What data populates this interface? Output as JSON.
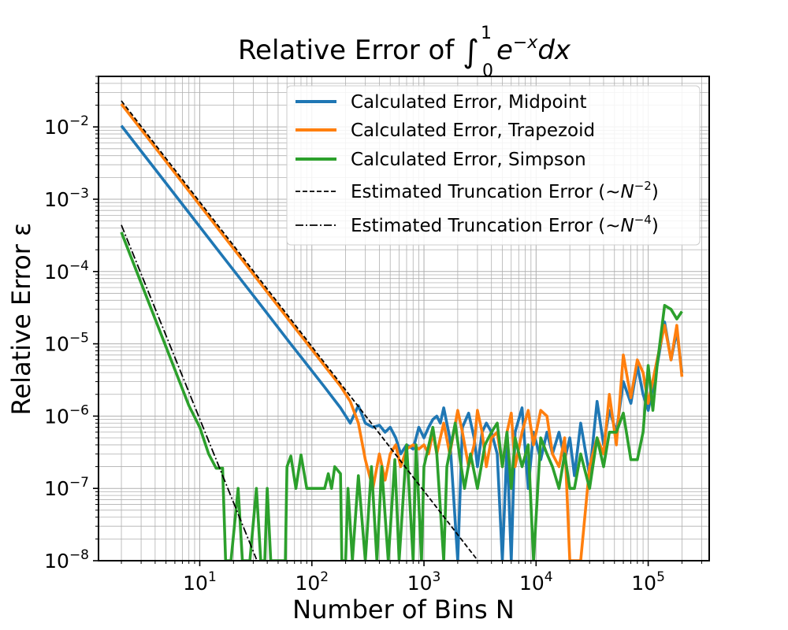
{
  "chart_data": {
    "type": "line",
    "title": "Relative Error of ∫₀¹ e⁻ˣdx",
    "title_parts": {
      "prefix": "Relative Error of ",
      "integral": "∫",
      "upper": "1",
      "lower": "0",
      "integrand": "e",
      "exponent": "−x",
      "suffix": "dx"
    },
    "xlabel": "Number of Bins N",
    "ylabel": "Relative Error ε",
    "xscale": "log",
    "yscale": "log",
    "xlim": [
      1.25,
      350000
    ],
    "ylim": [
      1e-08,
      0.05
    ],
    "xticks": [
      {
        "value": 10,
        "base": "10",
        "exp": "1"
      },
      {
        "value": 100,
        "base": "10",
        "exp": "2"
      },
      {
        "value": 1000,
        "base": "10",
        "exp": "3"
      },
      {
        "value": 10000,
        "base": "10",
        "exp": "4"
      },
      {
        "value": 100000,
        "base": "10",
        "exp": "5"
      }
    ],
    "yticks": [
      {
        "value": 1e-08,
        "base": "10",
        "exp": "−8"
      },
      {
        "value": 1e-07,
        "base": "10",
        "exp": "−7"
      },
      {
        "value": 1e-06,
        "base": "10",
        "exp": "−6"
      },
      {
        "value": 1e-05,
        "base": "10",
        "exp": "−5"
      },
      {
        "value": 0.0001,
        "base": "10",
        "exp": "−4"
      },
      {
        "value": 0.001,
        "base": "10",
        "exp": "−3"
      },
      {
        "value": 0.01,
        "base": "10",
        "exp": "−2"
      }
    ],
    "grid": {
      "major": true,
      "minor": true
    },
    "legend_position": "top-right",
    "series": [
      {
        "name": "Calculated Error, Midpoint",
        "color": "#1f77b4",
        "style": "solid",
        "points": [
          [
            2,
            0.0104
          ],
          [
            4,
            0.0026
          ],
          [
            8,
            0.00065
          ],
          [
            16,
            0.000163
          ],
          [
            32,
            4.1e-05
          ],
          [
            64,
            1.02e-05
          ],
          [
            128,
            2.6e-06
          ],
          [
            180,
            1.3e-06
          ],
          [
            220,
            8e-07
          ],
          [
            260,
            1.4e-06
          ],
          [
            300,
            8e-07
          ],
          [
            350,
            7e-07
          ],
          [
            400,
            7.5e-07
          ],
          [
            450,
            6e-07
          ],
          [
            500,
            7e-07
          ],
          [
            560,
            5e-07
          ],
          [
            620,
            3e-07
          ],
          [
            700,
            4e-07
          ],
          [
            800,
            3.5e-07
          ],
          [
            900,
            7e-07
          ],
          [
            1000,
            5e-07
          ],
          [
            1100,
            7e-07
          ],
          [
            1200,
            9e-07
          ],
          [
            1300,
            1e-06
          ],
          [
            1400,
            8e-07
          ],
          [
            1500,
            1.3e-06
          ],
          [
            1700,
            5e-07
          ],
          [
            2000,
            1e-08
          ],
          [
            2200,
            7e-07
          ],
          [
            2500,
            1.1e-06
          ],
          [
            2800,
            5e-07
          ],
          [
            3000,
            2e-07
          ],
          [
            3300,
            6e-07
          ],
          [
            3600,
            8e-07
          ],
          [
            4000,
            6e-07
          ],
          [
            4500,
            3e-07
          ],
          [
            5000,
            1e-08
          ],
          [
            5500,
            4e-07
          ],
          [
            6000,
            1e-08
          ],
          [
            6500,
            6e-07
          ],
          [
            7500,
            1.3e-06
          ],
          [
            8500,
            1e-07
          ],
          [
            9500,
            6e-07
          ],
          [
            11000,
            2.5e-07
          ],
          [
            12500,
            6e-07
          ],
          [
            14000,
            3e-07
          ],
          [
            16000,
            6e-07
          ],
          [
            18000,
            2.5e-07
          ],
          [
            20000,
            5e-07
          ],
          [
            22000,
            1.5e-07
          ],
          [
            25000,
            8e-07
          ],
          [
            30000,
            1.5e-07
          ],
          [
            35000,
            1.6e-06
          ],
          [
            40000,
            4e-07
          ],
          [
            45000,
            1.2e-06
          ],
          [
            52000,
            6e-07
          ],
          [
            60000,
            3e-06
          ],
          [
            70000,
            1.5e-06
          ],
          [
            80000,
            5e-06
          ],
          [
            90000,
            2e-06
          ],
          [
            100000,
            1.2e-06
          ],
          [
            120000,
            5e-06
          ],
          [
            140000,
            2e-05
          ],
          [
            160000,
            6e-06
          ],
          [
            180000,
            1.5e-05
          ],
          [
            200000,
            4e-06
          ]
        ]
      },
      {
        "name": "Calculated Error, Trapezoid",
        "color": "#ff7f0e",
        "style": "solid",
        "points": [
          [
            2,
            0.0208
          ],
          [
            4,
            0.0052
          ],
          [
            8,
            0.0013
          ],
          [
            16,
            0.000325
          ],
          [
            32,
            8.1e-05
          ],
          [
            64,
            2.03e-05
          ],
          [
            128,
            5.1e-06
          ],
          [
            180,
            2.6e-06
          ],
          [
            220,
            1.6e-06
          ],
          [
            260,
            8e-07
          ],
          [
            300,
            2.5e-07
          ],
          [
            350,
            1e-07
          ],
          [
            400,
            3e-07
          ],
          [
            450,
            1.3e-07
          ],
          [
            500,
            3e-07
          ],
          [
            560,
            4e-07
          ],
          [
            620,
            2e-07
          ],
          [
            700,
            3.5e-07
          ],
          [
            800,
            4e-07
          ],
          [
            900,
            3.5e-07
          ],
          [
            1000,
            4e-07
          ],
          [
            1100,
            3e-07
          ],
          [
            1200,
            6e-07
          ],
          [
            1300,
            3e-07
          ],
          [
            1400,
            5e-07
          ],
          [
            1500,
            8e-07
          ],
          [
            1700,
            3e-07
          ],
          [
            2000,
            1.2e-06
          ],
          [
            2200,
            6e-07
          ],
          [
            2500,
            2e-07
          ],
          [
            2800,
            4e-07
          ],
          [
            3000,
            1.2e-06
          ],
          [
            3300,
            6e-07
          ],
          [
            3600,
            2e-07
          ],
          [
            4000,
            5e-07
          ],
          [
            4500,
            6e-07
          ],
          [
            5000,
            2e-07
          ],
          [
            5500,
            6e-07
          ],
          [
            6000,
            1.1e-06
          ],
          [
            6500,
            2e-07
          ],
          [
            7500,
            6e-07
          ],
          [
            8500,
            1.2e-06
          ],
          [
            9500,
            4e-07
          ],
          [
            11000,
            1.2e-06
          ],
          [
            12500,
            1e-06
          ],
          [
            14000,
            3e-07
          ],
          [
            16000,
            2e-07
          ],
          [
            18000,
            5e-07
          ],
          [
            20000,
            1e-08
          ],
          [
            22000,
            1e-08
          ],
          [
            25000,
            1e-08
          ],
          [
            30000,
            2e-07
          ],
          [
            35000,
            5e-07
          ],
          [
            40000,
            3e-07
          ],
          [
            45000,
            2e-06
          ],
          [
            52000,
            4e-07
          ],
          [
            60000,
            7e-06
          ],
          [
            70000,
            1.8e-06
          ],
          [
            80000,
            6e-06
          ],
          [
            90000,
            4e-06
          ],
          [
            100000,
            1.5e-06
          ],
          [
            120000,
            6e-06
          ],
          [
            140000,
            1.8e-05
          ],
          [
            160000,
            6e-06
          ],
          [
            180000,
            1.8e-05
          ],
          [
            200000,
            3.5e-06
          ]
        ]
      },
      {
        "name": "Calculated Error, Simpson",
        "color": "#2ca02c",
        "style": "solid",
        "points": [
          [
            2,
            0.00035
          ],
          [
            4,
            2.2e-05
          ],
          [
            8,
            1.4e-06
          ],
          [
            10,
            7e-07
          ],
          [
            12,
            3e-07
          ],
          [
            14,
            1.9e-07
          ],
          [
            16,
            1.9e-07
          ],
          [
            17,
            1e-08
          ],
          [
            19,
            1e-08
          ],
          [
            22,
            1e-07
          ],
          [
            24,
            1e-08
          ],
          [
            28,
            1e-08
          ],
          [
            32,
            1e-07
          ],
          [
            35,
            1e-08
          ],
          [
            38,
            1e-08
          ],
          [
            40,
            1e-07
          ],
          [
            43,
            1e-08
          ],
          [
            58,
            1e-08
          ],
          [
            60,
            2e-07
          ],
          [
            65,
            2.8e-07
          ],
          [
            72,
            1e-07
          ],
          [
            80,
            2.9e-07
          ],
          [
            90,
            1e-07
          ],
          [
            110,
            1e-07
          ],
          [
            130,
            1e-07
          ],
          [
            140,
            1.6e-07
          ],
          [
            150,
            1e-07
          ],
          [
            160,
            2e-07
          ],
          [
            180,
            1.6e-07
          ],
          [
            185,
            1e-08
          ],
          [
            200,
            1e-08
          ],
          [
            210,
            1e-07
          ],
          [
            230,
            1e-08
          ],
          [
            260,
            1.5e-07
          ],
          [
            300,
            1e-08
          ],
          [
            340,
            2e-07
          ],
          [
            380,
            1e-08
          ],
          [
            420,
            2e-07
          ],
          [
            480,
            1e-08
          ],
          [
            550,
            2.5e-07
          ],
          [
            600,
            1e-08
          ],
          [
            700,
            4e-07
          ],
          [
            800,
            1e-08
          ],
          [
            850,
            4e-07
          ],
          [
            950,
            1e-08
          ],
          [
            1000,
            2e-07
          ],
          [
            1200,
            7e-07
          ],
          [
            1300,
            3e-07
          ],
          [
            1500,
            1e-08
          ],
          [
            1600,
            2e-07
          ],
          [
            1900,
            8e-07
          ],
          [
            2100,
            2.5e-07
          ],
          [
            2300,
            1e-07
          ],
          [
            2600,
            3e-07
          ],
          [
            3000,
            1e-07
          ],
          [
            3500,
            4e-07
          ],
          [
            4000,
            6e-07
          ],
          [
            4500,
            8e-07
          ],
          [
            5000,
            2e-07
          ],
          [
            5500,
            6e-07
          ],
          [
            6000,
            1e-07
          ],
          [
            6500,
            5e-07
          ],
          [
            7500,
            2e-07
          ],
          [
            8500,
            4e-07
          ],
          [
            9500,
            1e-08
          ],
          [
            11000,
            5e-07
          ],
          [
            12500,
            3e-07
          ],
          [
            14000,
            2e-07
          ],
          [
            16000,
            1e-07
          ],
          [
            18000,
            3e-07
          ],
          [
            20000,
            1e-07
          ],
          [
            22000,
            1e-07
          ],
          [
            25000,
            3e-07
          ],
          [
            30000,
            1e-07
          ],
          [
            35000,
            5e-07
          ],
          [
            40000,
            2e-07
          ],
          [
            45000,
            6e-07
          ],
          [
            52000,
            6e-07
          ],
          [
            60000,
            1.1e-06
          ],
          [
            70000,
            2.5e-07
          ],
          [
            80000,
            2.5e-07
          ],
          [
            90000,
            6e-07
          ],
          [
            100000,
            5e-06
          ],
          [
            110000,
            1.2e-06
          ],
          [
            120000,
            5e-06
          ],
          [
            140000,
            3.4e-05
          ],
          [
            160000,
            3e-05
          ],
          [
            180000,
            2.2e-05
          ],
          [
            200000,
            2.8e-05
          ]
        ]
      },
      {
        "name": "Estimated Truncation Error (~N^−2)",
        "label_parts": {
          "prefix": "Estimated Truncation Error (~",
          "base": "N",
          "exp": "−2",
          "suffix": ")"
        },
        "color": "#000000",
        "style": "dashed",
        "points": [
          [
            2,
            0.023
          ],
          [
            3000,
            1.02e-08
          ]
        ]
      },
      {
        "name": "Estimated Truncation Error (~N^−4)",
        "label_parts": {
          "prefix": "Estimated Truncation Error (~",
          "base": "N",
          "exp": "−4",
          "suffix": ")"
        },
        "color": "#000000",
        "style": "dashdot",
        "points": [
          [
            2,
            0.00044
          ],
          [
            32,
            1.05e-08
          ]
        ]
      }
    ]
  }
}
